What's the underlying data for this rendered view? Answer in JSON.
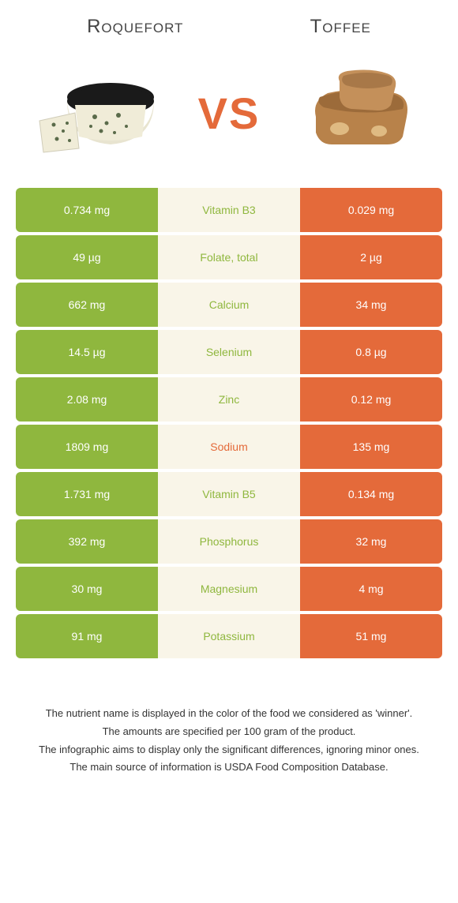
{
  "header": {
    "left_title": "Roquefort",
    "right_title": "Toffee",
    "vs_label": "VS"
  },
  "colors": {
    "left": "#8fb73e",
    "right": "#e46a3a",
    "mid_bg": "#f9f5e8",
    "page_bg": "#ffffff"
  },
  "rows": [
    {
      "left": "0.734 mg",
      "nutrient": "Vitamin B3",
      "right": "0.029 mg",
      "winner": "left"
    },
    {
      "left": "49 µg",
      "nutrient": "Folate, total",
      "right": "2 µg",
      "winner": "left"
    },
    {
      "left": "662 mg",
      "nutrient": "Calcium",
      "right": "34 mg",
      "winner": "left"
    },
    {
      "left": "14.5 µg",
      "nutrient": "Selenium",
      "right": "0.8 µg",
      "winner": "left"
    },
    {
      "left": "2.08 mg",
      "nutrient": "Zinc",
      "right": "0.12 mg",
      "winner": "left"
    },
    {
      "left": "1809 mg",
      "nutrient": "Sodium",
      "right": "135 mg",
      "winner": "right"
    },
    {
      "left": "1.731 mg",
      "nutrient": "Vitamin B5",
      "right": "0.134 mg",
      "winner": "left"
    },
    {
      "left": "392 mg",
      "nutrient": "Phosphorus",
      "right": "32 mg",
      "winner": "left"
    },
    {
      "left": "30 mg",
      "nutrient": "Magnesium",
      "right": "4 mg",
      "winner": "left"
    },
    {
      "left": "91 mg",
      "nutrient": "Potassium",
      "right": "51 mg",
      "winner": "left"
    }
  ],
  "footer": {
    "line1": "The nutrient name is displayed in the color of the food we considered as 'winner'.",
    "line2": "The amounts are specified per 100 gram of the product.",
    "line3": "The infographic aims to display only the significant differences, ignoring minor ones.",
    "line4": "The main source of information is USDA Food Composition Database."
  }
}
